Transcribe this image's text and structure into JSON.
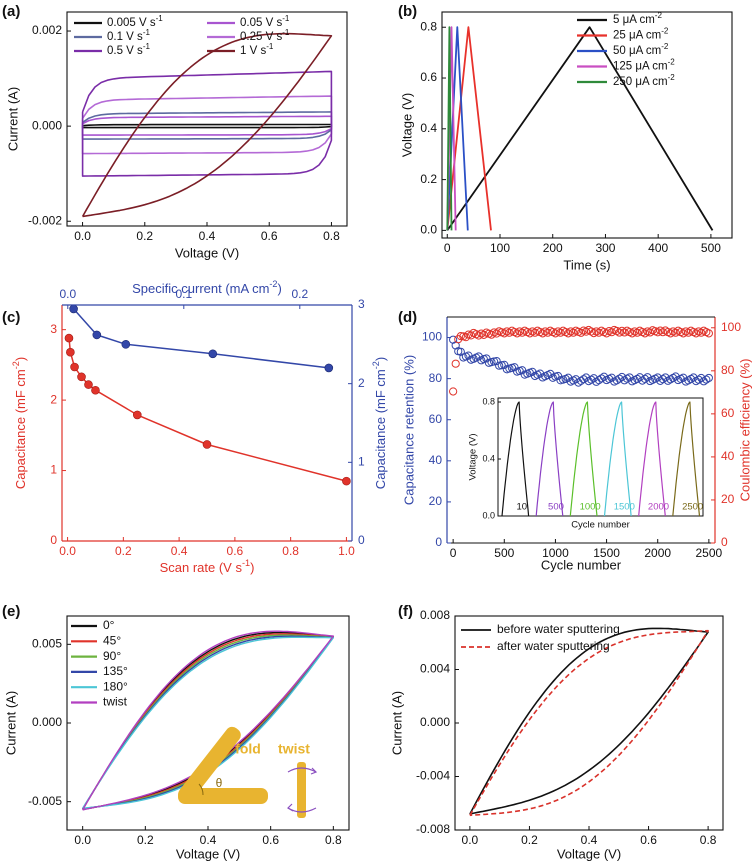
{
  "chart_data": [
    {
      "panel": "(a)",
      "type": "line",
      "xlabel": "Voltage (V)",
      "ylabel": "Current (A)",
      "xlim": [
        -0.05,
        0.85
      ],
      "ylim": [
        -0.0021,
        0.0024
      ],
      "xticks": [
        0.0,
        0.2,
        0.4,
        0.6,
        0.8
      ],
      "xtick_labels": [
        "0.0",
        "0.2",
        "0.4",
        "0.6",
        "0.8"
      ],
      "yticks": [
        -0.002,
        0.0,
        0.002
      ],
      "ytick_labels": [
        "-0.002",
        "0.000",
        "0.002"
      ],
      "legend": "top-left, two columns",
      "series": [
        {
          "name": "0.005 V s-1",
          "label": "0.005 V s",
          "sup": "-1",
          "color": "#111111",
          "shape": "rect",
          "vmin": 0,
          "vmax": 0.8,
          "a": 3e-05
        },
        {
          "name": "0.05 V s-1",
          "label": "0.05 V s",
          "sup": "-1",
          "color": "#a855d0",
          "shape": "rect",
          "vmin": 0,
          "vmax": 0.8,
          "a": 0.00018
        },
        {
          "name": "0.1 V s-1",
          "label": "0.1 V s",
          "sup": "-1",
          "color": "#5d6aa0",
          "shape": "rect",
          "vmin": 0,
          "vmax": 0.8,
          "a": 0.00026
        },
        {
          "name": "0.25 V s-1",
          "label": "0.25 V s",
          "sup": "-1",
          "color": "#b46ad6",
          "shape": "rect",
          "vmin": 0,
          "vmax": 0.8,
          "a": 0.00055
        },
        {
          "name": "0.5 V s-1",
          "label": "0.5 V s",
          "sup": "-1",
          "color": "#7a2da8",
          "shape": "rect",
          "vmin": 0,
          "vmax": 0.8,
          "a": 0.001
        },
        {
          "name": "1 V s-1",
          "label": "1 V s",
          "sup": "-1",
          "color": "#7b1e26",
          "shape": "lens",
          "vmin": 0,
          "vmax": 0.8,
          "a": 0.0019
        }
      ]
    },
    {
      "panel": "(b)",
      "type": "line",
      "xlabel": "Time (s)",
      "ylabel": "Voltage (V)",
      "xlim": [
        -10,
        540
      ],
      "ylim": [
        -0.03,
        0.86
      ],
      "xticks": [
        0,
        100,
        200,
        300,
        400,
        500
      ],
      "xtick_labels": [
        "0",
        "100",
        "200",
        "300",
        "400",
        "500"
      ],
      "yticks": [
        0.0,
        0.2,
        0.4,
        0.6,
        0.8
      ],
      "ytick_labels": [
        "0.0",
        "0.2",
        "0.4",
        "0.6",
        "0.8"
      ],
      "legend": "top-right",
      "series": [
        {
          "name": "5 μA cm-2",
          "label": "5 μA cm",
          "sup": "-2",
          "color": "#111111",
          "x": [
            0,
            270,
            503
          ],
          "y": [
            0,
            0.8,
            0
          ]
        },
        {
          "name": "25 μA cm-2",
          "label": "25 μA cm",
          "sup": "-2",
          "color": "#e8312b",
          "x": [
            0,
            40,
            83
          ],
          "y": [
            0,
            0.8,
            0
          ]
        },
        {
          "name": "50 μA cm-2",
          "label": "50 μA cm",
          "sup": "-2",
          "color": "#2b50c6",
          "x": [
            0,
            19,
            39
          ],
          "y": [
            0,
            0.8,
            0
          ]
        },
        {
          "name": "125 μA cm-2",
          "label": "125 μA cm",
          "sup": "-2",
          "color": "#c94fc2",
          "x": [
            0,
            8,
            16
          ],
          "y": [
            0,
            0.8,
            0
          ]
        },
        {
          "name": "250 μA cm-2",
          "label": "250 μA cm",
          "sup": "-2",
          "color": "#2f8a3a",
          "x": [
            0,
            4,
            8
          ],
          "y": [
            0,
            0.8,
            0
          ]
        }
      ]
    },
    {
      "panel": "(c)",
      "type": "scatter",
      "xlabel": "Scan rate (V s",
      "xlabel_sup": "-1",
      "xlabel_end": ")",
      "ylabel": "Capacitance (mF cm",
      "ylabel_sup": "-2",
      "ylabel_end": ")",
      "top_xlabel": "Specific current (mA cm",
      "top_xlabel_sup": "-2",
      "top_xlabel_end": ")",
      "right_ylabel": "Capacitance (mF cm",
      "right_ylabel_sup": "-2",
      "right_ylabel_end": ")",
      "xlim": [
        -0.02,
        1.02
      ],
      "ylim": [
        0,
        3.35
      ],
      "top_xlim": [
        -0.005,
        0.245
      ],
      "right_ylim": [
        0,
        3.0
      ],
      "xticks": [
        0.0,
        0.2,
        0.4,
        0.6,
        0.8,
        1.0
      ],
      "xtick_labels": [
        "0.0",
        "0.2",
        "0.4",
        "0.6",
        "0.8",
        "1.0"
      ],
      "yticks": [
        0,
        1,
        2,
        3
      ],
      "ytick_labels": [
        "0",
        "1",
        "2",
        "3"
      ],
      "top_xticks": [
        0.0,
        0.1,
        0.2
      ],
      "top_xtick_labels": [
        "0.0",
        "0.1",
        "0.2"
      ],
      "right_yticks": [
        0,
        1,
        2,
        3
      ],
      "right_ytick_labels": [
        "0",
        "1",
        "2",
        "3"
      ],
      "series": [
        {
          "axis": "bottom-left",
          "color": "#e0332a",
          "x": [
            0.005,
            0.01,
            0.025,
            0.05,
            0.075,
            0.1,
            0.25,
            0.5,
            1.0
          ],
          "y": [
            2.88,
            2.68,
            2.47,
            2.33,
            2.22,
            2.14,
            1.79,
            1.37,
            0.85
          ]
        },
        {
          "axis": "top-right",
          "color": "#3347a8",
          "x": [
            0.005,
            0.025,
            0.05,
            0.125,
            0.225
          ],
          "y": [
            2.95,
            2.62,
            2.5,
            2.38,
            2.2
          ]
        }
      ]
    },
    {
      "panel": "(d)",
      "type": "scatter",
      "xlabel": "Cycle number",
      "ylabel": "Capacitance retention (%)",
      "right_ylabel": "Coulombic efficiency (%)",
      "xlim": [
        -60,
        2560
      ],
      "ylim": [
        0,
        110
      ],
      "right_ylim": [
        0,
        105
      ],
      "xticks": [
        0,
        500,
        1000,
        1500,
        2000,
        2500
      ],
      "xtick_labels": [
        "0",
        "500",
        "1000",
        "1500",
        "2000",
        "2500"
      ],
      "yticks": [
        0,
        20,
        40,
        60,
        80,
        100
      ],
      "ytick_labels": [
        "0",
        "20",
        "40",
        "60",
        "80",
        "100"
      ],
      "right_yticks": [
        0,
        20,
        40,
        60,
        80,
        100
      ],
      "right_ytick_labels": [
        "0",
        "20",
        "40",
        "60",
        "80",
        "100"
      ],
      "series": [
        {
          "axis": "left",
          "color": "#3347a8",
          "x": [
            0,
            50,
            100,
            200,
            300,
            400,
            500,
            600,
            700,
            800,
            900,
            1000,
            1100,
            1200,
            1300,
            1400,
            1500,
            1600,
            1700,
            1800,
            1900,
            2000,
            2100,
            2200,
            2300,
            2400,
            2500
          ],
          "y": [
            100,
            93,
            91,
            90,
            89.5,
            88,
            86,
            84.5,
            83,
            82,
            81.5,
            81,
            79.5,
            79,
            79.5,
            79.5,
            80,
            79.5,
            80,
            79.5,
            80,
            79.5,
            80,
            80,
            79.5,
            79.5,
            80
          ]
        },
        {
          "axis": "right",
          "color": "#e0332a",
          "x": [
            0,
            50,
            100,
            200,
            300,
            400,
            500,
            600,
            700,
            800,
            900,
            1000,
            1100,
            1200,
            1300,
            1400,
            1500,
            1600,
            1700,
            1800,
            1900,
            2000,
            2100,
            2200,
            2300,
            2400,
            2500
          ],
          "y": [
            71,
            95,
            96,
            97,
            97,
            97.5,
            98,
            98,
            98,
            98,
            98,
            98,
            98,
            98,
            98.5,
            98,
            98,
            98.5,
            98,
            98,
            98,
            98.5,
            98,
            98,
            98,
            98,
            98
          ]
        }
      ],
      "inset": {
        "xlabel": "Cycle number",
        "ylabel": "Voltage (V)",
        "yticks": [
          0.0,
          0.4,
          0.8
        ],
        "ytick_labels": [
          "0.0",
          "0.4",
          "0.8"
        ],
        "ylim": [
          0,
          0.8
        ],
        "cycles": [
          {
            "label": "10",
            "color": "#111111"
          },
          {
            "label": "500",
            "color": "#8a3fc4"
          },
          {
            "label": "1000",
            "color": "#5bbf2a"
          },
          {
            "label": "1500",
            "color": "#4cc6d6"
          },
          {
            "label": "2000",
            "color": "#b23fc0"
          },
          {
            "label": "2500",
            "color": "#7a6a1a"
          }
        ]
      }
    },
    {
      "panel": "(e)",
      "type": "line",
      "xlabel": "Voltage (V)",
      "ylabel": "Current (A)",
      "xlim": [
        -0.05,
        0.85
      ],
      "ylim": [
        -0.0068,
        0.0068
      ],
      "xticks": [
        0.0,
        0.2,
        0.4,
        0.6,
        0.8
      ],
      "xtick_labels": [
        "0.0",
        "0.2",
        "0.4",
        "0.6",
        "0.8"
      ],
      "yticks": [
        -0.005,
        0.0,
        0.005
      ],
      "ytick_labels": [
        "-0.005",
        "0.000",
        "0.005"
      ],
      "legend": "top-left",
      "inset_labels": {
        "fold": "fold",
        "twist": "twist",
        "theta": "θ"
      },
      "series": [
        {
          "name": "0°",
          "color": "#111111",
          "a": 0.0055,
          "b": 0.0002
        },
        {
          "name": "45°",
          "color": "#e0332a",
          "a": 0.00548,
          "b": 0.0001
        },
        {
          "name": "90°",
          "color": "#6db33f",
          "a": 0.00546,
          "b": 0.0
        },
        {
          "name": "135°",
          "color": "#3347a8",
          "a": 0.00544,
          "b": -0.0001
        },
        {
          "name": "180°",
          "color": "#4cc6d6",
          "a": 0.00542,
          "b": -0.0002
        },
        {
          "name": "twist",
          "color": "#b23fc0",
          "a": 0.00552,
          "b": 0.0003
        }
      ]
    },
    {
      "panel": "(f)",
      "type": "line",
      "xlabel": "Voltage (V)",
      "ylabel": "Current (A)",
      "xlim": [
        -0.05,
        0.85
      ],
      "ylim": [
        -0.008,
        0.008
      ],
      "xticks": [
        0.0,
        0.2,
        0.4,
        0.6,
        0.8
      ],
      "xtick_labels": [
        "0.0",
        "0.2",
        "0.4",
        "0.6",
        "0.8"
      ],
      "yticks": [
        -0.008,
        -0.004,
        0.0,
        0.004,
        0.008
      ],
      "ytick_labels": [
        "-0.008",
        "-0.004",
        "0.000",
        "0.004",
        "0.008"
      ],
      "legend": "top-left",
      "series": [
        {
          "name": "before water sputtering",
          "color": "#111111",
          "dash": "solid",
          "a": 0.0068,
          "b": 0.0002
        },
        {
          "name": "after water sputtering",
          "color": "#d9322b",
          "dash": "dashed",
          "a": 0.0069,
          "b": -0.0006
        }
      ]
    }
  ]
}
